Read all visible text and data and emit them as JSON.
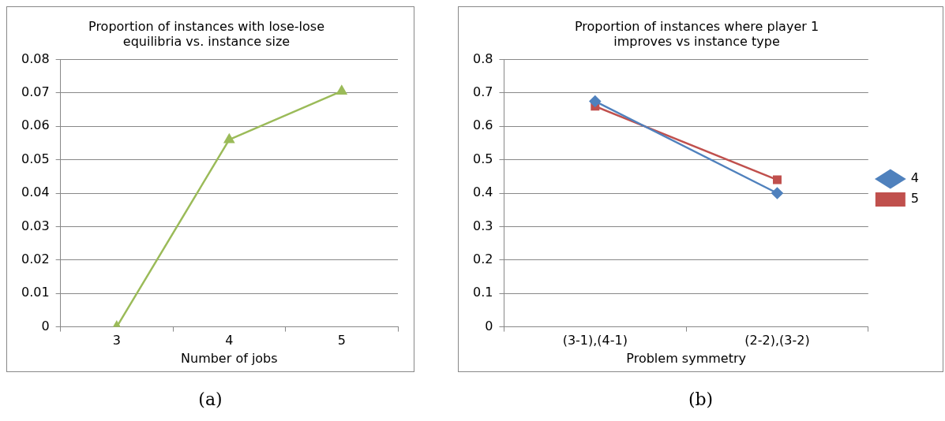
{
  "chart_data": [
    {
      "type": "line",
      "title": "Proportion of instances with lose-lose equilibria vs. instance size",
      "xlabel": "Number of jobs",
      "categories": [
        "3",
        "4",
        "5"
      ],
      "series": [
        {
          "color": "#9bbb59",
          "values": [
            0,
            0.056,
            0.0705
          ],
          "marker": "triangle"
        }
      ],
      "ylim": [
        0,
        0.08
      ],
      "yticks": [
        0,
        0.01,
        0.02,
        0.03,
        0.04,
        0.05,
        0.06,
        0.07,
        0.08
      ],
      "grid": "y",
      "legend": false,
      "annotations": [
        "(a)"
      ]
    },
    {
      "type": "line",
      "title": "Proportion of instances where player 1 improves vs instance type",
      "xlabel": "Problem symmetry",
      "categories": [
        "(3-1),(4-1)",
        "(2-2),(3-2)"
      ],
      "series": [
        {
          "name": "4",
          "color": "#4f81bd",
          "values": [
            0.675,
            0.4
          ],
          "marker": "diamond"
        },
        {
          "name": "5",
          "color": "#c0504d",
          "values": [
            0.66,
            0.44
          ],
          "marker": "square"
        }
      ],
      "ylim": [
        0,
        0.8
      ],
      "yticks": [
        0,
        0.1,
        0.2,
        0.3,
        0.4,
        0.5,
        0.6,
        0.7,
        0.8
      ],
      "grid": "y",
      "legend": "right",
      "annotations": [
        "(b)"
      ]
    }
  ]
}
